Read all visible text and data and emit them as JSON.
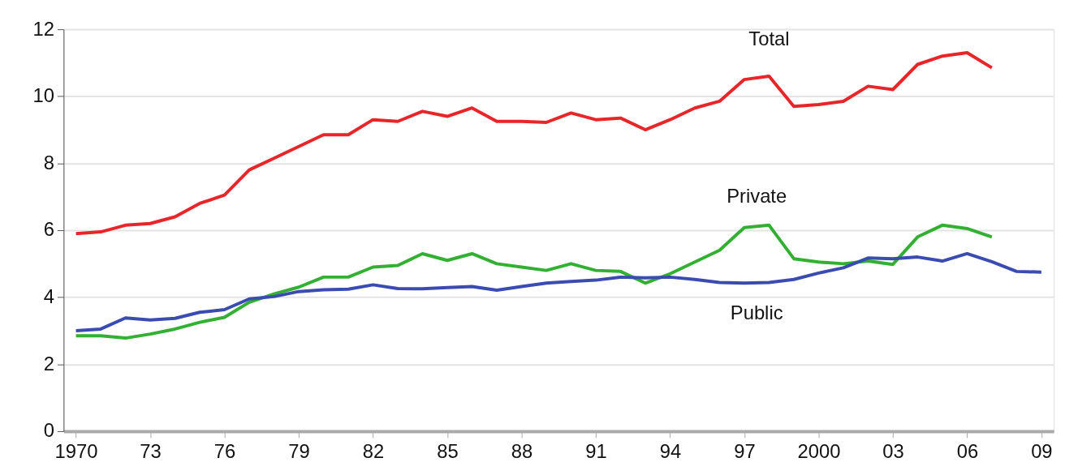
{
  "chart_data": {
    "type": "line",
    "x": [
      1970,
      1971,
      1972,
      1973,
      1974,
      1975,
      1976,
      1977,
      1978,
      1979,
      1980,
      1981,
      1982,
      1983,
      1984,
      1985,
      1986,
      1987,
      1988,
      1989,
      1990,
      1991,
      1992,
      1993,
      1994,
      1995,
      1996,
      1997,
      1998,
      1999,
      2000,
      2001,
      2002,
      2003,
      2004,
      2005,
      2006,
      2007,
      2008,
      2009
    ],
    "series": [
      {
        "name": "Total",
        "color": "#e8262a",
        "values": [
          5.9,
          5.95,
          6.15,
          6.2,
          6.4,
          6.8,
          7.05,
          7.8,
          8.15,
          8.5,
          8.85,
          8.85,
          9.3,
          9.25,
          9.55,
          9.4,
          9.65,
          9.25,
          9.25,
          9.22,
          9.5,
          9.3,
          9.35,
          9.0,
          9.3,
          9.65,
          9.85,
          10.5,
          10.6,
          9.7,
          9.75,
          9.85,
          10.3,
          10.2,
          10.95,
          11.2,
          11.3,
          10.85,
          null,
          null
        ]
      },
      {
        "name": "Private",
        "color": "#33b033",
        "values": [
          2.85,
          2.85,
          2.78,
          2.9,
          3.05,
          3.25,
          3.4,
          3.85,
          4.1,
          4.3,
          4.6,
          4.6,
          4.9,
          4.95,
          5.3,
          5.1,
          5.3,
          5.0,
          4.9,
          4.8,
          5.0,
          4.8,
          4.77,
          4.42,
          4.7,
          5.05,
          5.4,
          6.08,
          6.15,
          5.15,
          5.05,
          5.0,
          5.08,
          4.98,
          5.8,
          6.15,
          6.05,
          5.8,
          null,
          null
        ]
      },
      {
        "name": "Public",
        "color": "#3b4cb0",
        "values": [
          3.0,
          3.05,
          3.38,
          3.32,
          3.37,
          3.55,
          3.63,
          3.95,
          4.02,
          4.17,
          4.22,
          4.24,
          4.37,
          4.26,
          4.25,
          4.29,
          4.32,
          4.21,
          4.32,
          4.42,
          4.47,
          4.51,
          4.6,
          4.58,
          4.6,
          4.53,
          4.44,
          4.42,
          4.44,
          4.53,
          4.72,
          4.88,
          5.17,
          5.15,
          5.2,
          5.08,
          5.3,
          5.06,
          4.77,
          4.75
        ]
      }
    ],
    "xlim": [
      1969.5,
      2009.5
    ],
    "xticks": [
      1970,
      {
        "value": 1973,
        "label": "73"
      },
      {
        "value": 1976,
        "label": "76"
      },
      {
        "value": 1979,
        "label": "79"
      },
      {
        "value": 1982,
        "label": "82"
      },
      {
        "value": 1985,
        "label": "85"
      },
      {
        "value": 1988,
        "label": "88"
      },
      {
        "value": 1991,
        "label": "91"
      },
      {
        "value": 1994,
        "label": "94"
      },
      {
        "value": 1997,
        "label": "97"
      },
      2000,
      {
        "value": 2003,
        "label": "03"
      },
      {
        "value": 2006,
        "label": "06"
      },
      {
        "value": 2009,
        "label": "09"
      }
    ],
    "ylim": [
      0,
      12
    ],
    "yticks": [
      0,
      2,
      4,
      6,
      8,
      10,
      12
    ],
    "grid": "y",
    "legend": false,
    "marker": "none",
    "line_style": "solid"
  }
}
